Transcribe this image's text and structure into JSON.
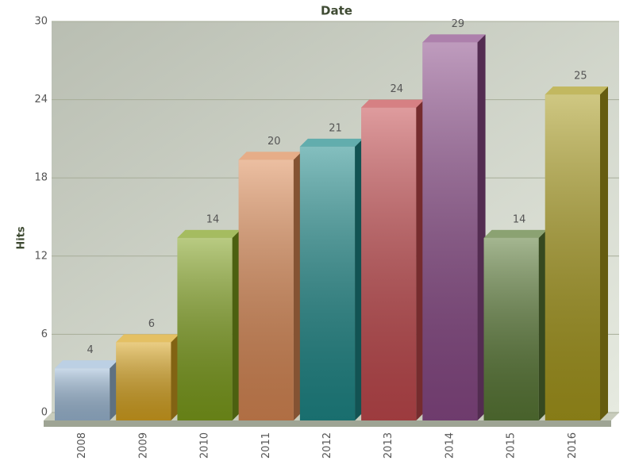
{
  "chart_data": {
    "type": "bar3d",
    "title": "Date",
    "y_label": "Hits",
    "categories": [
      "2008",
      "2009",
      "2010",
      "2011",
      "2012",
      "2013",
      "2014",
      "2015",
      "2016"
    ],
    "values": [
      4,
      6,
      14,
      20,
      21,
      24,
      29,
      14,
      25
    ],
    "colors": [
      "#9fbcd8",
      "#d9a520",
      "#7fa01c",
      "#dc8a55",
      "#1f8a8a",
      "#c44a4e",
      "#8a4a88",
      "#5a7a36",
      "#a89a1c"
    ],
    "ylim": [
      0,
      30
    ],
    "yticks": [
      0,
      6,
      12,
      18,
      24,
      30
    ],
    "grid": true
  }
}
